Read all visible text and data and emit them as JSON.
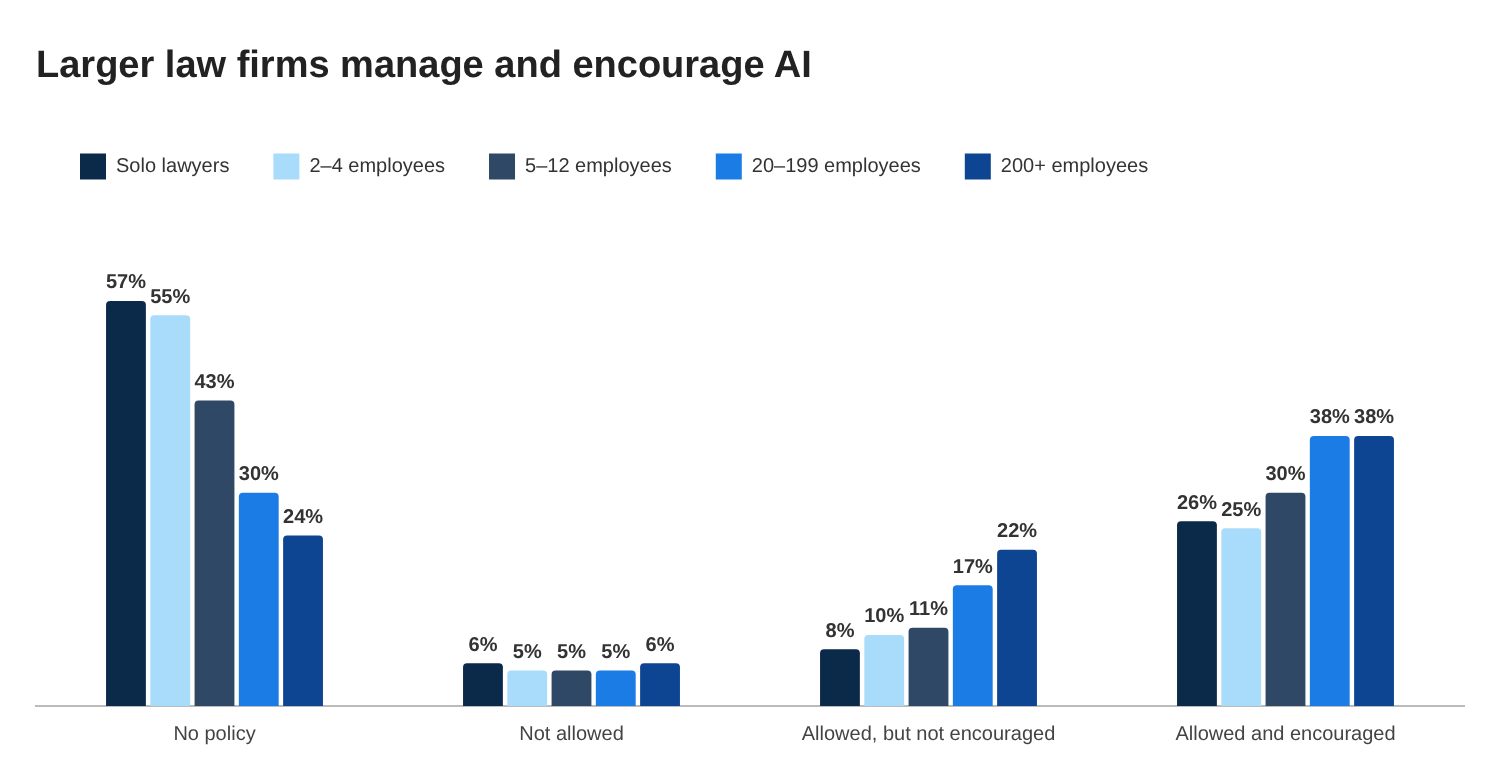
{
  "chart_data": {
    "type": "bar",
    "title": "Larger law firms manage and encourage AI",
    "categories": [
      "No policy",
      "Not allowed",
      "Allowed, but not encouraged",
      "Allowed and encouraged"
    ],
    "series": [
      {
        "name": "Solo lawyers",
        "color": "#0b2a4a",
        "values": [
          57,
          6,
          8,
          26
        ],
        "value_labels": [
          "57%",
          "6%",
          "8%",
          "26%"
        ]
      },
      {
        "name": "2–4 employees",
        "color": "#a9dcfb",
        "values": [
          55,
          5,
          10,
          25
        ],
        "value_labels": [
          "55%",
          "5%",
          "10%",
          "25%"
        ]
      },
      {
        "name": "5–12 employees",
        "color": "#2f4866",
        "values": [
          43,
          5,
          11,
          30
        ],
        "value_labels": [
          "43%",
          "5%",
          "11%",
          "30%"
        ]
      },
      {
        "name": "20–199 employees",
        "color": "#1b7ce6",
        "values": [
          30,
          5,
          17,
          38
        ],
        "value_labels": [
          "30%",
          "5%",
          "17%",
          "38%"
        ]
      },
      {
        "name": "200+ employees",
        "color": "#0e4592",
        "values": [
          24,
          6,
          22,
          38
        ],
        "value_labels": [
          "24%",
          "6%",
          "22%",
          "38%"
        ]
      }
    ],
    "legend": "top left",
    "grid": false
  }
}
